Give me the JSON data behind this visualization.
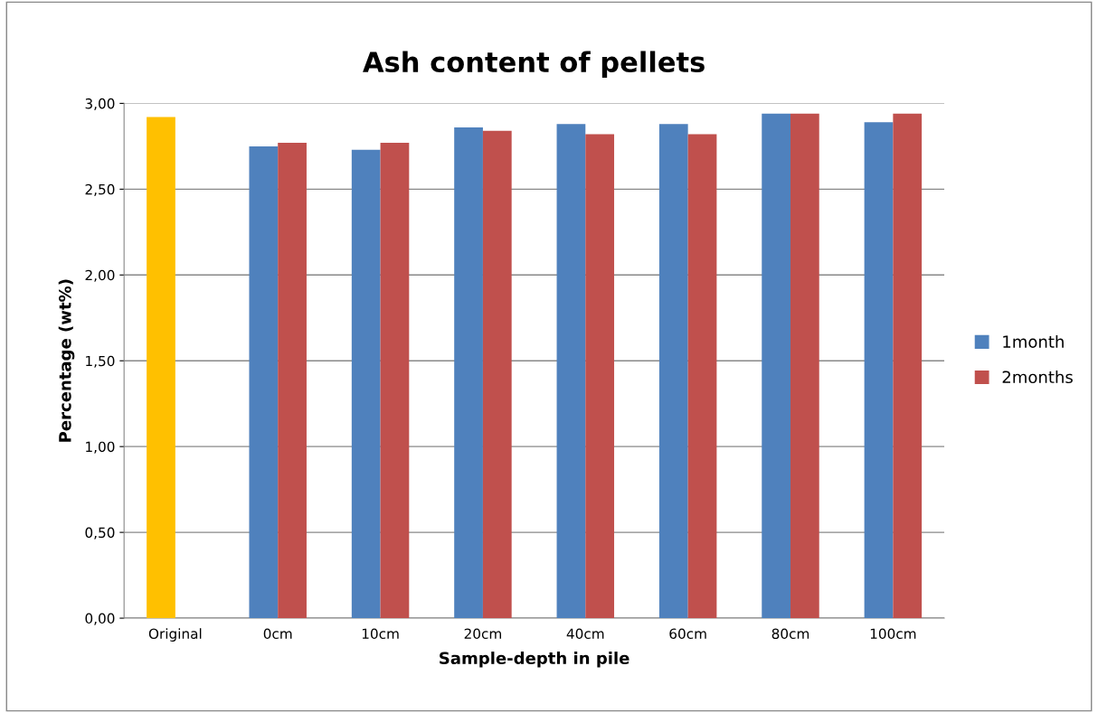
{
  "chart_data": {
    "type": "bar",
    "title": "Ash content of pellets",
    "xlabel": "Sample-depth in pile",
    "ylabel": "Percentage (wt%)",
    "categories": [
      "Original",
      "0cm",
      "10cm",
      "20cm",
      "40cm",
      "60cm",
      "80cm",
      "100cm"
    ],
    "series": [
      {
        "name": "1month",
        "color": "#4f81bd",
        "colors": [
          "#ffc000",
          "#4f81bd",
          "#4f81bd",
          "#4f81bd",
          "#4f81bd",
          "#4f81bd",
          "#4f81bd",
          "#4f81bd"
        ],
        "values": [
          2.92,
          2.75,
          2.73,
          2.86,
          2.88,
          2.88,
          2.94,
          2.89
        ]
      },
      {
        "name": "2months",
        "color": "#c0504d",
        "values": [
          null,
          2.77,
          2.77,
          2.84,
          2.82,
          2.82,
          2.94,
          2.94
        ]
      }
    ],
    "ylim": [
      0,
      3
    ],
    "yticks": [
      {
        "value": 0,
        "label": "0,00"
      },
      {
        "value": 0.5,
        "label": "0,50"
      },
      {
        "value": 1,
        "label": "1,00"
      },
      {
        "value": 1.5,
        "label": "1,50"
      },
      {
        "value": 2,
        "label": "2,00"
      },
      {
        "value": 2.5,
        "label": "2,50"
      },
      {
        "value": 3,
        "label": "3,00"
      }
    ],
    "grid": "y",
    "legend": "right"
  }
}
